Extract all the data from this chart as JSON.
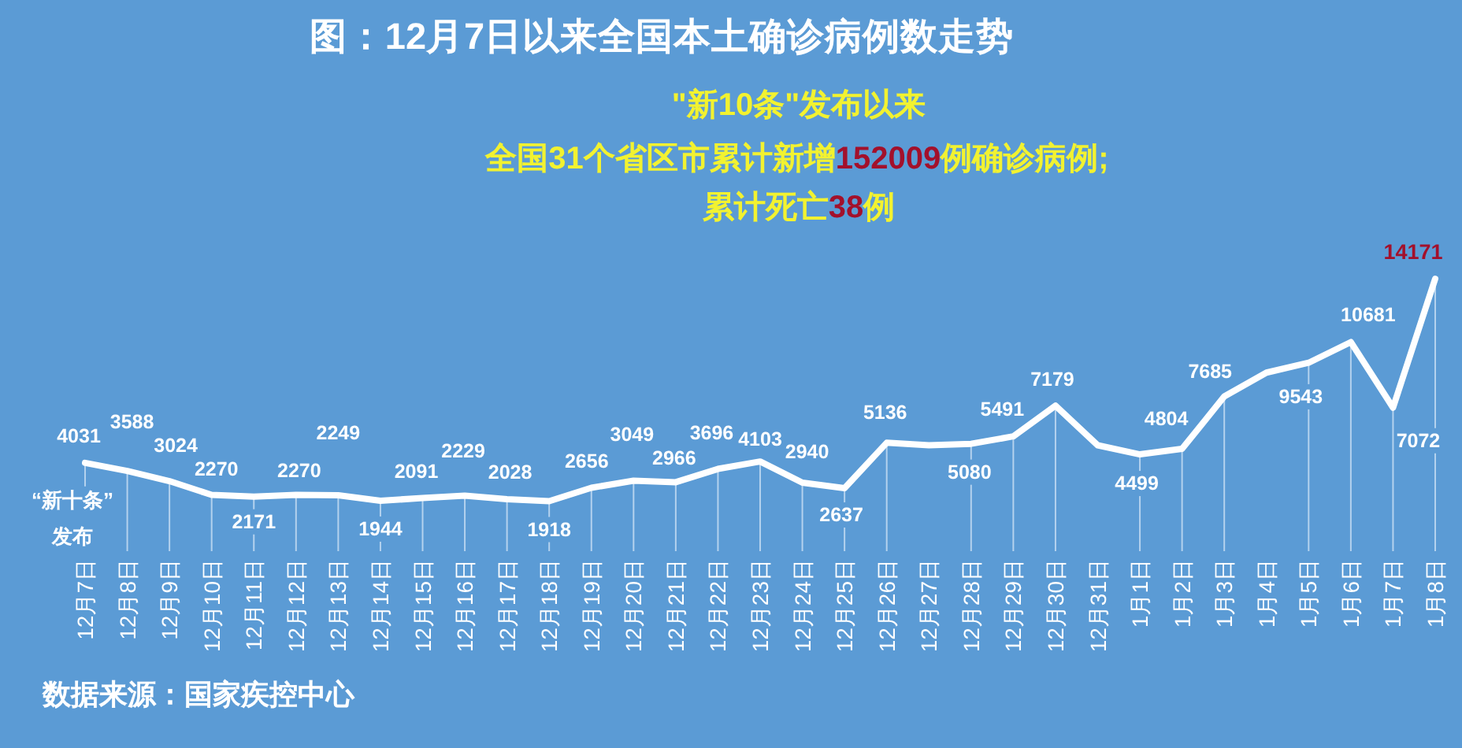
{
  "chart_data": {
    "type": "line",
    "title": "图：12月7日以来全国本土确诊病例数走势",
    "categories": [
      "12月7日",
      "12月8日",
      "12月9日",
      "12月10日",
      "12月11日",
      "12月12日",
      "12月13日",
      "12月14日",
      "12月15日",
      "12月16日",
      "12月17日",
      "12月18日",
      "12月19日",
      "12月20日",
      "12月21日",
      "12月22日",
      "12月23日",
      "12月24日",
      "12月25日",
      "12月26日",
      "12月27日",
      "12月28日",
      "12月29日",
      "12月30日",
      "12月31日",
      "1月1日",
      "1月2日",
      "1月3日",
      "1月4日",
      "1月5日",
      "1月6日",
      "1月7日",
      "1月8日"
    ],
    "series": [
      {
        "color": "#ffffff",
        "values": [
          4031,
          3588,
          3024,
          2270,
          2171,
          2270,
          2249,
          1944,
          2091,
          2229,
          2028,
          1918,
          2656,
          3049,
          2966,
          3696,
          4103,
          2940,
          2637,
          5136,
          5000,
          5080,
          5491,
          7179,
          5000,
          4499,
          4804,
          7685,
          9000,
          9543,
          10681,
          7072,
          14171
        ],
        "value_labels": [
          "4031",
          "3588",
          "3024",
          "2270",
          "2171",
          "2270",
          "2249",
          "1944",
          "2091",
          "2229",
          "2028",
          "1918",
          "2656",
          "3049",
          "2966",
          "3696",
          "4103",
          "2940",
          "2637",
          "5136",
          null,
          "5080",
          "5491",
          "7179",
          null,
          "4499",
          "4804",
          "7685",
          null,
          "9543",
          "10681",
          "7072",
          "14171"
        ]
      }
    ],
    "annotations": [
      "\"新10条\"发布以来",
      "全国31个省区市累计新增152009例确诊病例;",
      "累计死亡38例",
      {
        "text": "“新十条”\n发布",
        "x": "12月7日",
        "y": 4031
      },
      "数据来源：国家疾控中心"
    ],
    "grid": "x"
  }
}
